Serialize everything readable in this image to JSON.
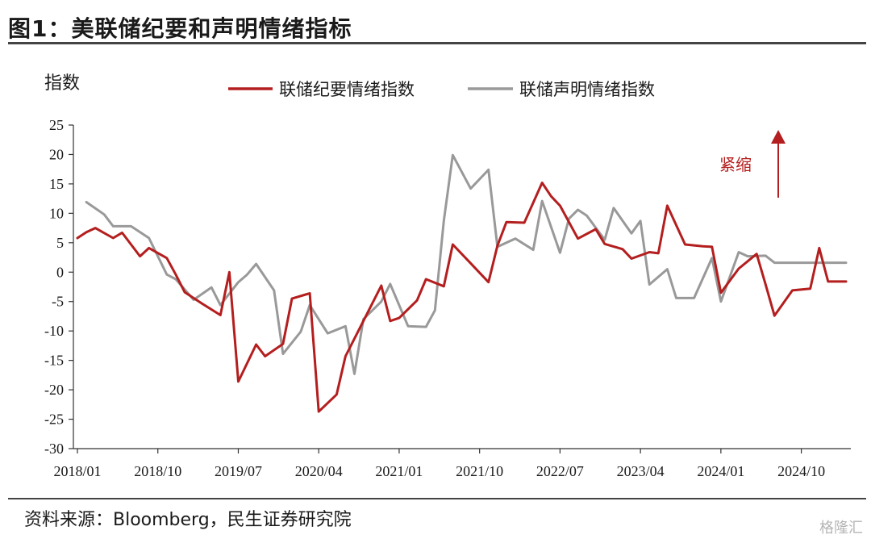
{
  "header": {
    "title": "图1：美联储纪要和声明情绪指标"
  },
  "footer": {
    "source": "资料来源：Bloomberg，民生证券研究院",
    "watermark": "格隆汇"
  },
  "chart_data": {
    "type": "line",
    "ylabel": "指数",
    "ylim": [
      -30,
      25
    ],
    "yticks": [
      25,
      20,
      15,
      10,
      5,
      0,
      -5,
      -10,
      -15,
      -20,
      -25,
      -30
    ],
    "x_tick_labels": [
      "2018/01",
      "2018/10",
      "2019/07",
      "2020/04",
      "2021/01",
      "2021/10",
      "2022/07",
      "2023/04",
      "2024/01",
      "2024/10"
    ],
    "annotation": {
      "text": "紧缩",
      "arrow": "up"
    },
    "colors": {
      "minutes": "#b41e1e",
      "statement": "#999999"
    },
    "series": [
      {
        "name": "联储纪要情绪指数",
        "x": [
          "2018/01",
          "2018/02",
          "2018/03",
          "2018/05",
          "2018/06",
          "2018/08",
          "2018/09",
          "2018/11",
          "2018/12",
          "2019/01",
          "2019/03",
          "2019/05",
          "2019/06",
          "2019/07",
          "2019/09",
          "2019/10",
          "2019/12",
          "2020/01",
          "2020/03",
          "2020/04",
          "2020/06",
          "2020/07",
          "2020/09",
          "2020/11",
          "2020/12",
          "2021/01",
          "2021/03",
          "2021/04",
          "2021/06",
          "2021/07",
          "2021/09",
          "2021/11",
          "2021/12",
          "2022/01",
          "2022/03",
          "2022/05",
          "2022/06",
          "2022/07",
          "2022/09",
          "2022/11",
          "2022/12",
          "2023/02",
          "2023/03",
          "2023/05",
          "2023/06",
          "2023/07",
          "2023/09",
          "2023/11",
          "2023/12",
          "2024/01",
          "2024/03",
          "2024/05",
          "2024/06",
          "2024/07",
          "2024/09",
          "2024/11",
          "2024/12",
          "2025/01",
          "2025/03"
        ],
        "values": [
          5.8,
          6.8,
          7.5,
          5.8,
          6.7,
          2.7,
          4.1,
          2.4,
          -0.4,
          -3.4,
          -5.4,
          -7.3,
          0,
          -18.6,
          -12.3,
          -14.3,
          -12.2,
          -4.5,
          -3.6,
          -23.7,
          -20.8,
          -14.3,
          -8.3,
          -2.3,
          -8.3,
          -7.8,
          -4.8,
          -1.2,
          -2.4,
          4.7,
          1.5,
          -1.7,
          4.5,
          8.5,
          8.4,
          15.2,
          12.9,
          11.3,
          5.7,
          7.3,
          4.8,
          3.9,
          2.3,
          3.4,
          3.2,
          11.3,
          4.7,
          4.4,
          4.3,
          -3.5,
          0.6,
          3.1,
          -2.1,
          -7.4,
          -3.1,
          -2.8,
          4.1,
          -1.6,
          -1.6
        ]
      },
      {
        "name": "联储声明情绪指数",
        "x": [
          "2018/02",
          "2018/04",
          "2018/05",
          "2018/07",
          "2018/09",
          "2018/11",
          "2018/12",
          "2019/02",
          "2019/04",
          "2019/05",
          "2019/07",
          "2019/08",
          "2019/09",
          "2019/11",
          "2019/12",
          "2020/02",
          "2020/03",
          "2020/05",
          "2020/07",
          "2020/08",
          "2020/09",
          "2020/11",
          "2020/12",
          "2021/02",
          "2021/04",
          "2021/05",
          "2021/06",
          "2021/07",
          "2021/09",
          "2021/11",
          "2021/12",
          "2022/02",
          "2022/04",
          "2022/05",
          "2022/07",
          "2022/08",
          "2022/09",
          "2022/10",
          "2022/12",
          "2023/01",
          "2023/03",
          "2023/04",
          "2023/05",
          "2023/07",
          "2023/08",
          "2023/10",
          "2023/12",
          "2024/01",
          "2024/03",
          "2024/04",
          "2024/06",
          "2024/07",
          "2024/08",
          "2024/10",
          "2024/11",
          "2024/12",
          "2025/01",
          "2025/03"
        ],
        "values": [
          11.9,
          9.8,
          7.8,
          7.8,
          5.8,
          -0.4,
          -1.2,
          -4.7,
          -2.6,
          -5.6,
          -1.7,
          -0.4,
          1.4,
          -3.1,
          -13.9,
          -10.1,
          -5.6,
          -10.4,
          -9.2,
          -17.3,
          -8,
          -5,
          -2,
          -9.2,
          -9.3,
          -6.5,
          8.7,
          19.9,
          14.2,
          17.4,
          4.3,
          5.7,
          3.8,
          12.1,
          3.3,
          9.1,
          10.6,
          9.6,
          5.5,
          10.9,
          6.6,
          8.7,
          -2.1,
          0.5,
          -4.4,
          -4.4,
          2.4,
          -5,
          3.4,
          2.7,
          2.8,
          1.6,
          1.6,
          1.6,
          1.6,
          1.6,
          1.6,
          1.6
        ]
      }
    ]
  }
}
